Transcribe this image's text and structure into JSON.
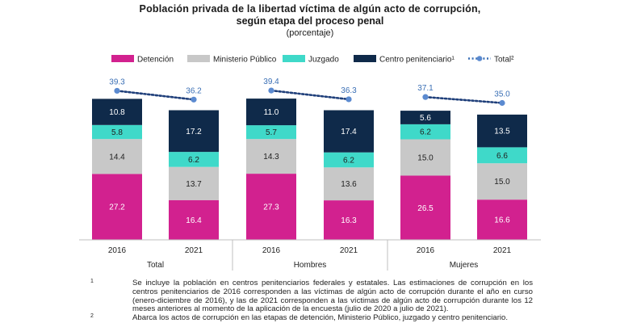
{
  "header": {
    "title": "Población privada de la libertad víctima de algún acto de corrupción,",
    "title_line2": "según etapa del proceso penal",
    "subtitle": "(porcentaje)"
  },
  "chart_data": {
    "type": "bar",
    "stacked": true,
    "groups": [
      "Total",
      "Hombres",
      "Mujeres"
    ],
    "categories": [
      "2016",
      "2021"
    ],
    "legend_position": "top",
    "grid": false,
    "ylim": [
      0,
      45
    ],
    "series": [
      {
        "name": "Detención",
        "color": "#D2218F",
        "values": [
          [
            27.2,
            16.4
          ],
          [
            27.3,
            16.3
          ],
          [
            26.5,
            16.6
          ]
        ]
      },
      {
        "name": "Ministerio Público",
        "color": "#C8C8C8",
        "values": [
          [
            14.4,
            13.7
          ],
          [
            14.3,
            13.6
          ],
          [
            15.0,
            15.0
          ]
        ]
      },
      {
        "name": "Juzgado",
        "color": "#3FD9C9",
        "values": [
          [
            5.8,
            6.2
          ],
          [
            5.7,
            6.2
          ],
          [
            6.2,
            6.6
          ]
        ]
      },
      {
        "name": "Centro penitenciario¹",
        "color": "#0F2A4A",
        "values": [
          [
            10.8,
            17.2
          ],
          [
            11.0,
            17.4
          ],
          [
            5.6,
            13.5
          ]
        ]
      }
    ],
    "total_series": {
      "name": "Total²",
      "color": "#3A6FB5",
      "values": [
        [
          39.3,
          36.2
        ],
        [
          39.4,
          36.3
        ],
        [
          37.1,
          35.0
        ]
      ]
    }
  },
  "notes": [
    {
      "marker": "1",
      "text": "Se incluye la población en centros penitenciarios federales y estatales. Las estimaciones de corrupción en los centros penitenciarios de 2016 corresponden a las víctimas de algún acto de corrupción durante el año en curso (enero-diciembre de 2016), y las de 2021 corresponden a las víctimas de algún acto de corrupción durante los 12 meses anteriores al momento de la aplicación de la encuesta (julio de 2020 a julio de 2021)."
    },
    {
      "marker": "2",
      "text": "Abarca los actos de corrupción en las etapas de detención, Ministerio Público, juzgado y centro penitenciario."
    }
  ]
}
